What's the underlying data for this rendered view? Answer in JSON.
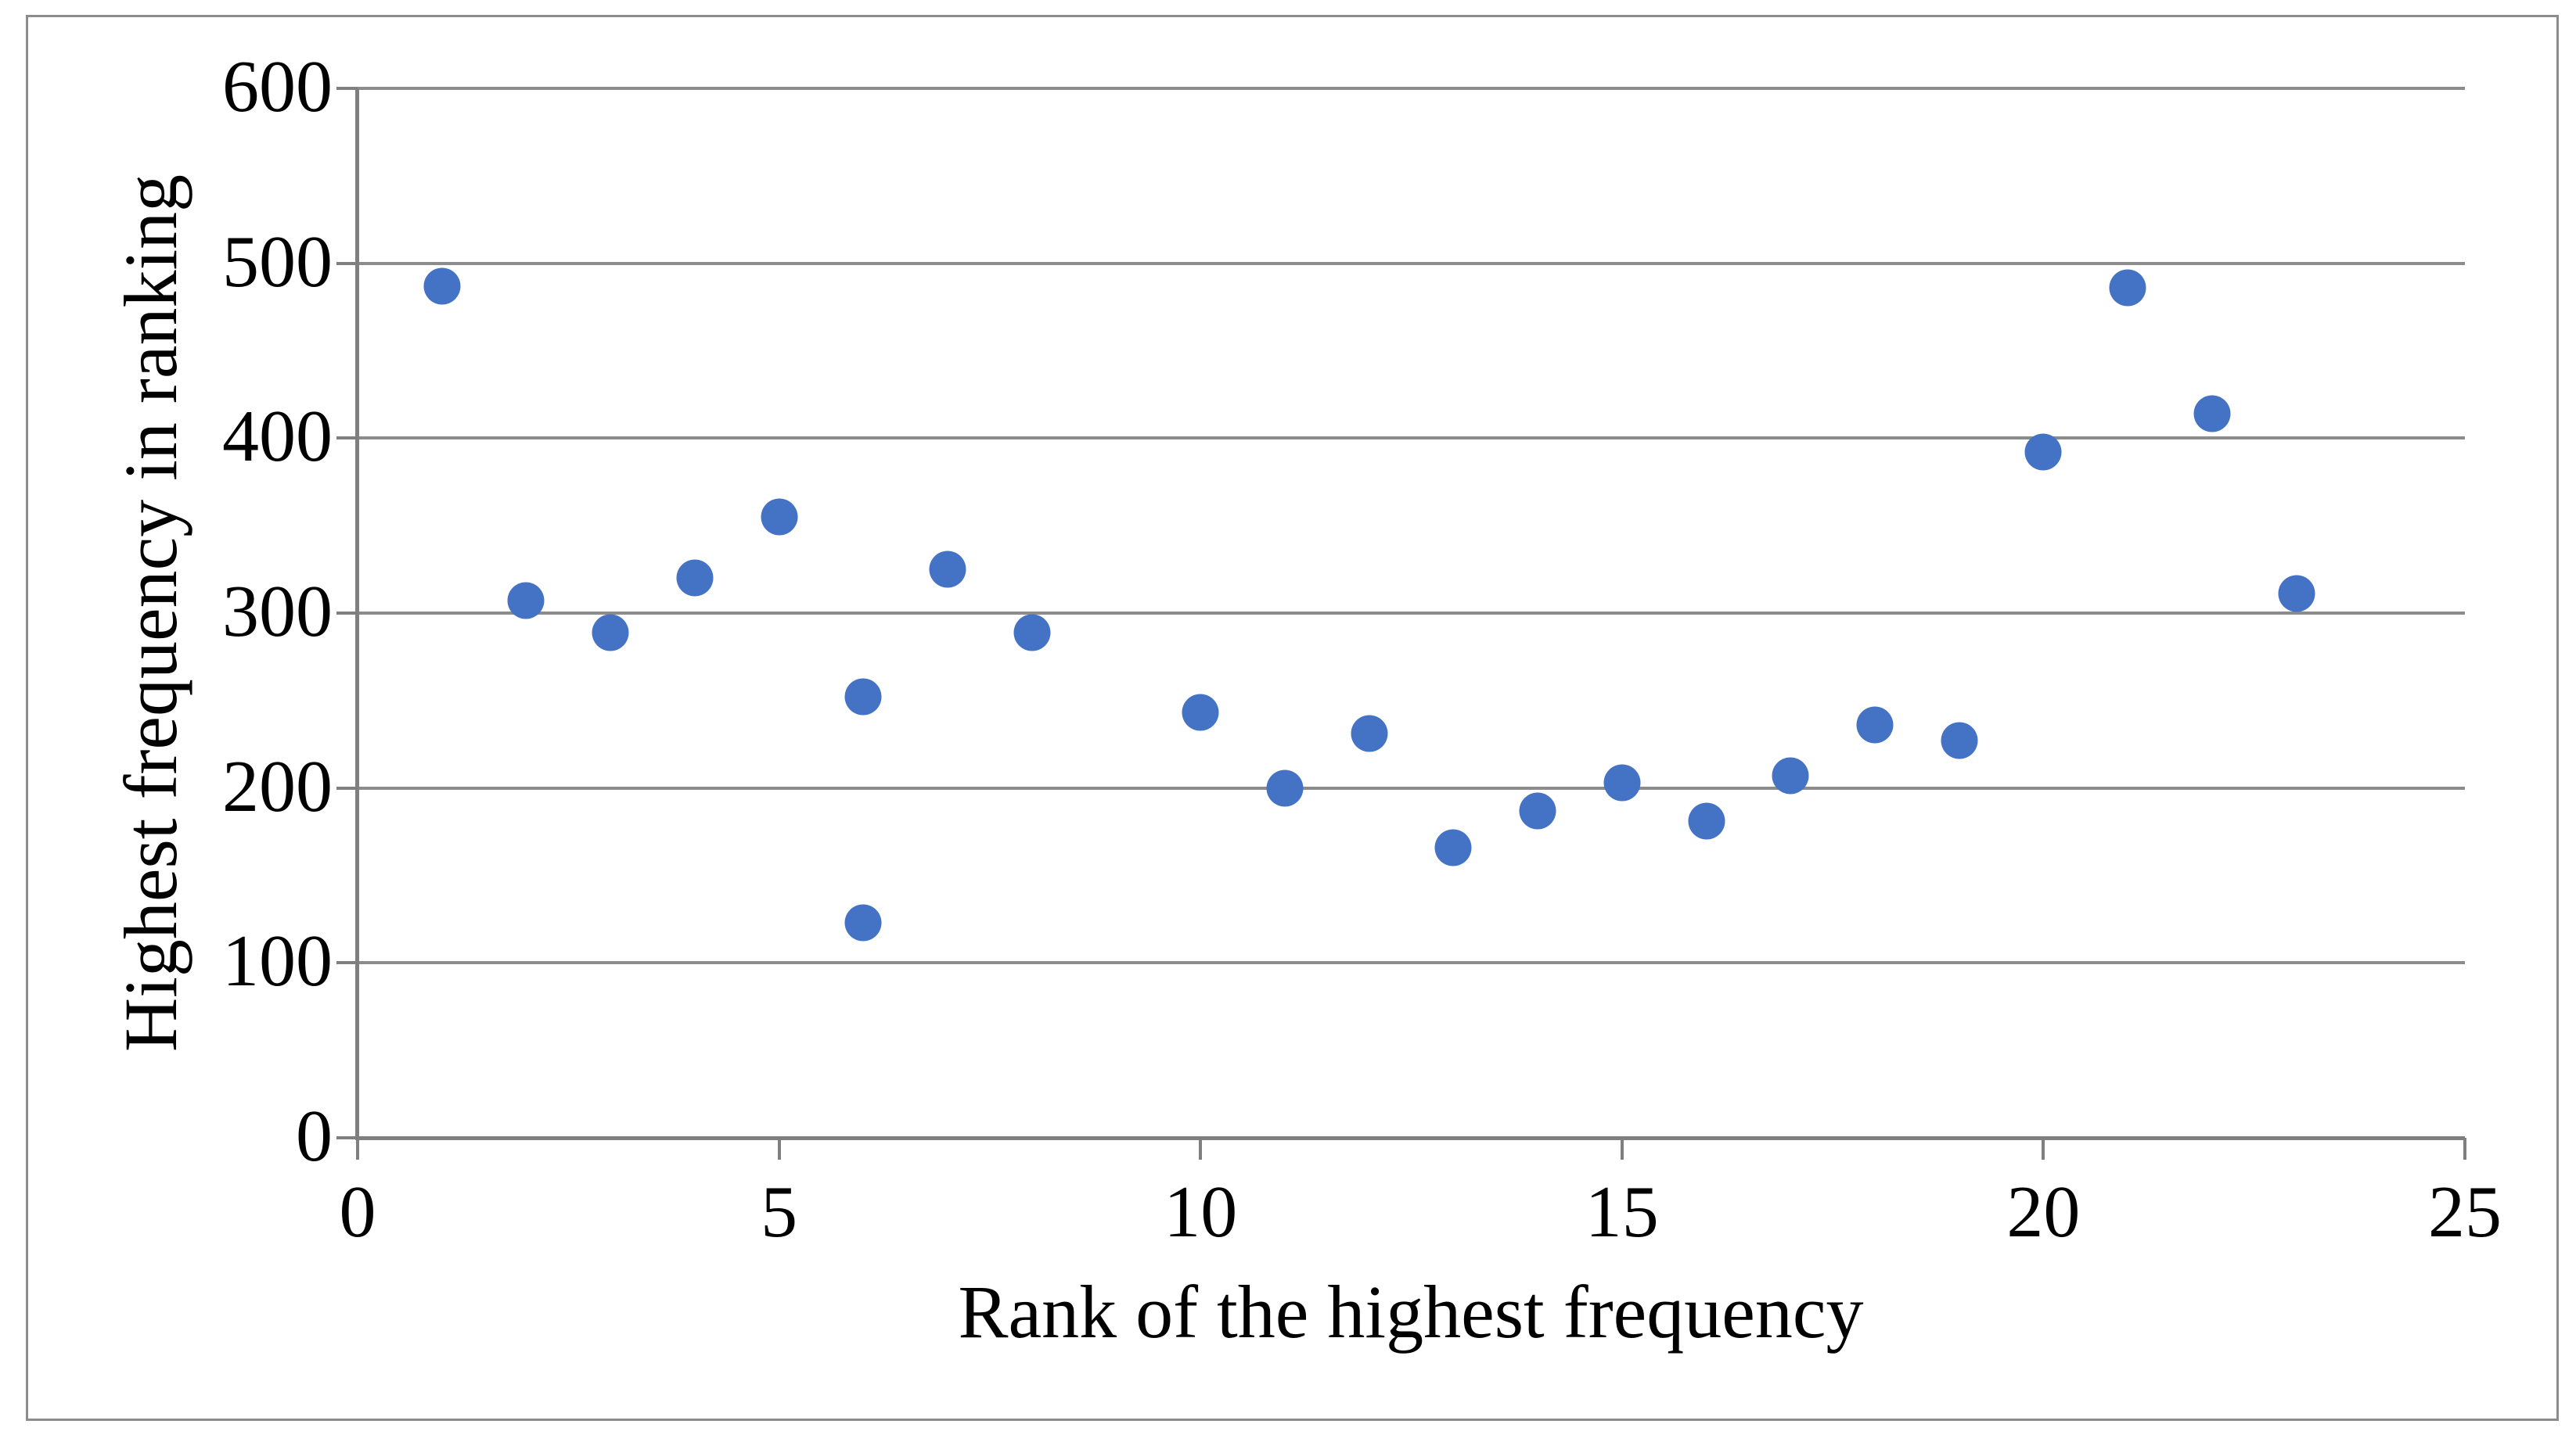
{
  "chart_data": {
    "type": "scatter",
    "title": "",
    "xlabel": "Rank of the highest frequency",
    "ylabel": "Highest frequency in ranking",
    "xlim": [
      0,
      25
    ],
    "ylim": [
      0,
      600
    ],
    "xticks": [
      0,
      5,
      10,
      15,
      20,
      25
    ],
    "yticks": [
      0,
      100,
      200,
      300,
      400,
      500,
      600
    ],
    "grid": "horizontal-only",
    "legend": "none",
    "marker": "filled-circle",
    "points": [
      {
        "x": 1,
        "y": 487
      },
      {
        "x": 2,
        "y": 307
      },
      {
        "x": 3,
        "y": 289
      },
      {
        "x": 4,
        "y": 320
      },
      {
        "x": 5,
        "y": 355
      },
      {
        "x": 6,
        "y": 252
      },
      {
        "x": 6,
        "y": 123
      },
      {
        "x": 7,
        "y": 325
      },
      {
        "x": 8,
        "y": 289
      },
      {
        "x": 10,
        "y": 243
      },
      {
        "x": 11,
        "y": 200
      },
      {
        "x": 12,
        "y": 231
      },
      {
        "x": 13,
        "y": 166
      },
      {
        "x": 14,
        "y": 187
      },
      {
        "x": 15,
        "y": 203
      },
      {
        "x": 16,
        "y": 181
      },
      {
        "x": 17,
        "y": 207
      },
      {
        "x": 18,
        "y": 236
      },
      {
        "x": 19,
        "y": 227
      },
      {
        "x": 20,
        "y": 392
      },
      {
        "x": 21,
        "y": 486
      },
      {
        "x": 22,
        "y": 414
      },
      {
        "x": 23,
        "y": 311
      }
    ]
  },
  "colors": {
    "marker": "#4472C4",
    "gridline": "#8C8C8C",
    "axis": "#7F7F7F",
    "frame_border": "#8C8C8C",
    "text": "#000000",
    "background": "#FFFFFF"
  }
}
